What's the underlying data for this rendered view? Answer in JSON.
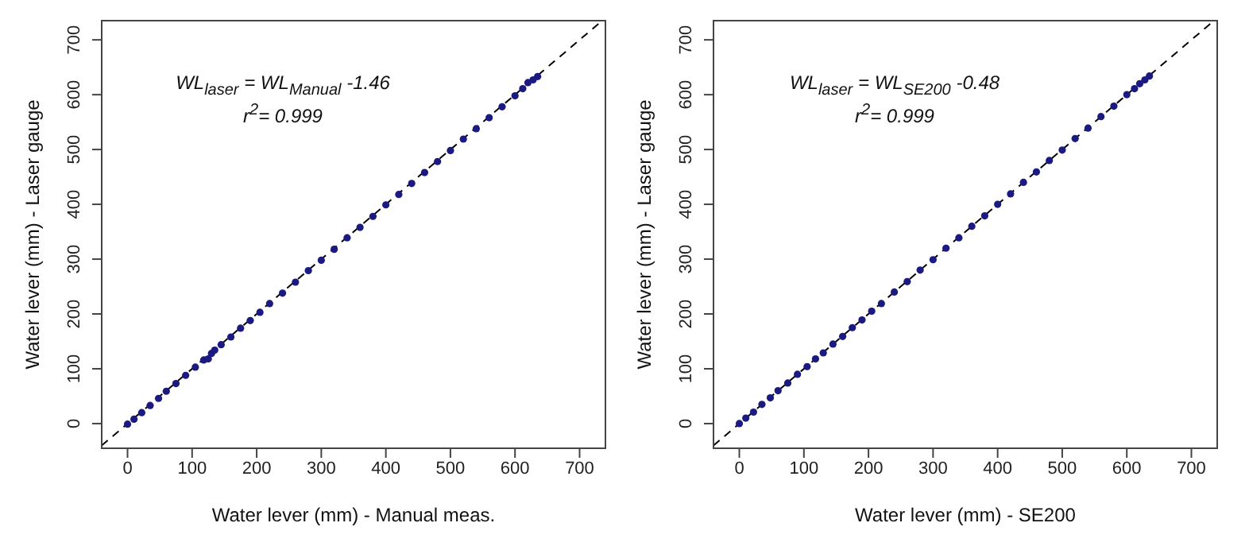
{
  "chart_data": [
    {
      "type": "scatter",
      "xlabel": "Water lever (mm) - Manual meas.",
      "ylabel": "Water lever (mm) - Laser gauge",
      "xlim": [
        -40,
        740
      ],
      "ylim": [
        -45,
        735
      ],
      "xticks": [
        0,
        100,
        200,
        300,
        400,
        500,
        600,
        700
      ],
      "yticks": [
        0,
        100,
        200,
        300,
        400,
        500,
        600,
        700
      ],
      "annotations": [
        "WL$_{laser}$ = WL$_{Manual}$ -1.46",
        "r$^{2}$= 0.999"
      ],
      "series": [
        {
          "type": "line",
          "color": "#000000",
          "line_style": "dashed",
          "marker": "none",
          "x": [
            -40,
            735
          ],
          "values": [
            -40,
            735
          ]
        },
        {
          "color": "#1a1a80",
          "marker": "circle",
          "x": [
            0,
            10,
            22,
            35,
            48,
            60,
            75,
            90,
            105,
            118,
            125,
            130,
            135,
            145,
            160,
            175,
            190,
            205,
            220,
            240,
            260,
            280,
            300,
            320,
            340,
            360,
            380,
            400,
            420,
            440,
            460,
            480,
            500,
            520,
            540,
            560,
            580,
            600,
            612,
            620,
            628,
            635
          ],
          "values": [
            -1,
            8,
            20,
            33,
            46,
            59,
            73,
            88,
            103,
            116,
            118,
            128,
            134,
            144,
            158,
            174,
            188,
            203,
            219,
            238,
            258,
            279,
            298,
            318,
            339,
            358,
            378,
            399,
            418,
            438,
            458,
            478,
            498,
            519,
            538,
            558,
            578,
            598,
            611,
            622,
            627,
            633
          ]
        }
      ]
    },
    {
      "type": "scatter",
      "xlabel": "Water lever (mm) - SE200",
      "ylabel": "Water lever (mm) - Laser gauge",
      "xlim": [
        -40,
        740
      ],
      "ylim": [
        -45,
        735
      ],
      "xticks": [
        0,
        100,
        200,
        300,
        400,
        500,
        600,
        700
      ],
      "yticks": [
        0,
        100,
        200,
        300,
        400,
        500,
        600,
        700
      ],
      "annotations": [
        "WL$_{laser}$ = WL$_{SE200}$ -0.48",
        "r$^{2}$= 0.999"
      ],
      "series": [
        {
          "type": "line",
          "color": "#000000",
          "line_style": "dashed",
          "marker": "none",
          "x": [
            -40,
            735
          ],
          "values": [
            -40,
            735
          ]
        },
        {
          "color": "#1a1a80",
          "marker": "circle",
          "x": [
            0,
            10,
            22,
            35,
            48,
            60,
            75,
            90,
            105,
            118,
            130,
            145,
            160,
            175,
            190,
            205,
            220,
            240,
            260,
            280,
            300,
            320,
            340,
            360,
            380,
            400,
            420,
            440,
            460,
            480,
            500,
            520,
            540,
            560,
            580,
            600,
            612,
            620,
            628,
            635
          ],
          "values": [
            0,
            10,
            21,
            35,
            47,
            60,
            74,
            90,
            104,
            118,
            129,
            145,
            159,
            175,
            189,
            205,
            219,
            240,
            259,
            280,
            299,
            320,
            339,
            360,
            379,
            400,
            419,
            440,
            459,
            480,
            499,
            520,
            539,
            560,
            579,
            600,
            611,
            620,
            627,
            634
          ]
        }
      ]
    }
  ]
}
